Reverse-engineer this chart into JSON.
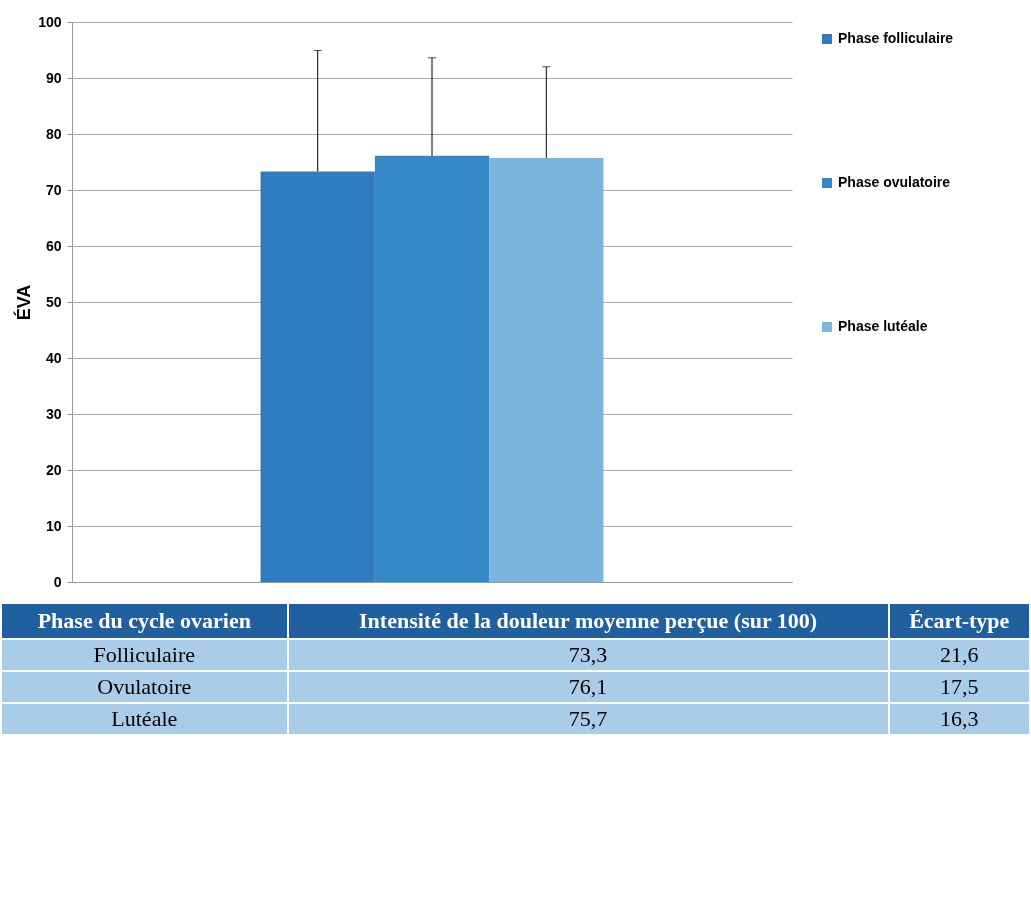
{
  "chart_data": [
    {
      "type": "bar",
      "ylabel": "ÉVA",
      "categories": [
        null
      ],
      "ylim": [
        0,
        100
      ],
      "yticks": [
        0,
        10,
        20,
        30,
        40,
        50,
        60,
        70,
        80,
        90,
        100
      ],
      "grid": "y",
      "legend": "right",
      "series": [
        {
          "name": "Phase folliculaire",
          "color": "#2e7bbf",
          "values": [
            73.3
          ],
          "errors": [
            [
              73.3,
              94.9
            ]
          ]
        },
        {
          "name": "Phase ovulatoire",
          "color": "#3388c6",
          "values": [
            76.1
          ],
          "errors": [
            [
              76.1,
              93.6
            ]
          ]
        },
        {
          "name": "Phase lutéale",
          "color": "#7ab5de",
          "values": [
            75.7
          ],
          "errors": [
            [
              75.7,
              92.0
            ]
          ]
        }
      ]
    },
    {
      "type": "other",
      "categories": [
        "Phase du cycle ovarien",
        "Intensité de la douleur moyenne perçue (sur 100)",
        "Écart-type"
      ],
      "annotations": [
        "Folliculaire",
        "73,3",
        "21,6",
        "Ovulatoire",
        "76,1",
        "17,5",
        "Lutéale",
        "75,7",
        "16,3"
      ]
    }
  ]
}
